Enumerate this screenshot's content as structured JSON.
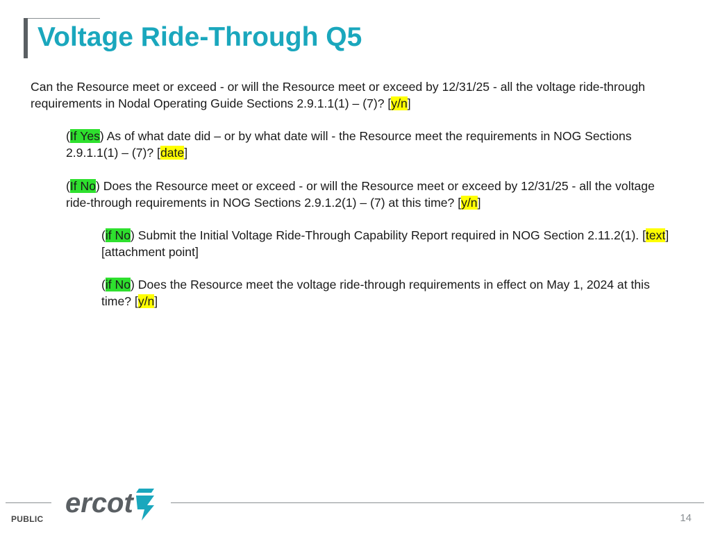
{
  "title": "Voltage Ride-Through Q5",
  "paragraphs": {
    "p1": {
      "text_a": "Can the Resource meet or exceed - or will the Resource meet or exceed by 12/31/25 - all the voltage ride-through requirements in Nodal Operating Guide Sections 2.9.1.1(1) – (7)? [",
      "answer": "y/n",
      "text_b": "]"
    },
    "p2": {
      "open": "(",
      "condition": "If Yes",
      "text_a": ") As of what date did – or by what date will - the Resource meet the requirements in NOG Sections 2.9.1.1(1) – (7)? [",
      "answer": "date",
      "text_b": "]"
    },
    "p3": {
      "open": "(",
      "condition": "If No",
      "text_a": ") Does the Resource meet or exceed - or will the Resource meet or exceed by 12/31/25 - all the voltage ride-through requirements in NOG Sections 2.9.1.2(1) – (7) at this time? [",
      "answer": "y/n",
      "text_b": "]"
    },
    "p4": {
      "open": "(",
      "condition": "if No",
      "text_a": ") Submit the Initial Voltage Ride-Through Capability Report required in NOG Section 2.11.2(1). [",
      "answer": "text",
      "text_b": "] [attachment point]"
    },
    "p5": {
      "open": "(",
      "condition": "if No",
      "text_a": ") Does the Resource meet the voltage ride-through requirements in effect on May 1, 2024 at this time? [",
      "answer": "y/n",
      "text_b": "]"
    }
  },
  "footer": {
    "classification": "PUBLIC",
    "logo_text": "ercot",
    "page_number": "14"
  },
  "colors": {
    "title": "#1aa7bd",
    "highlight_condition": "#2ee02e",
    "highlight_answer": "#ffff00",
    "logo": "#5a5f63",
    "logo_mark": "#1aa7bd"
  }
}
